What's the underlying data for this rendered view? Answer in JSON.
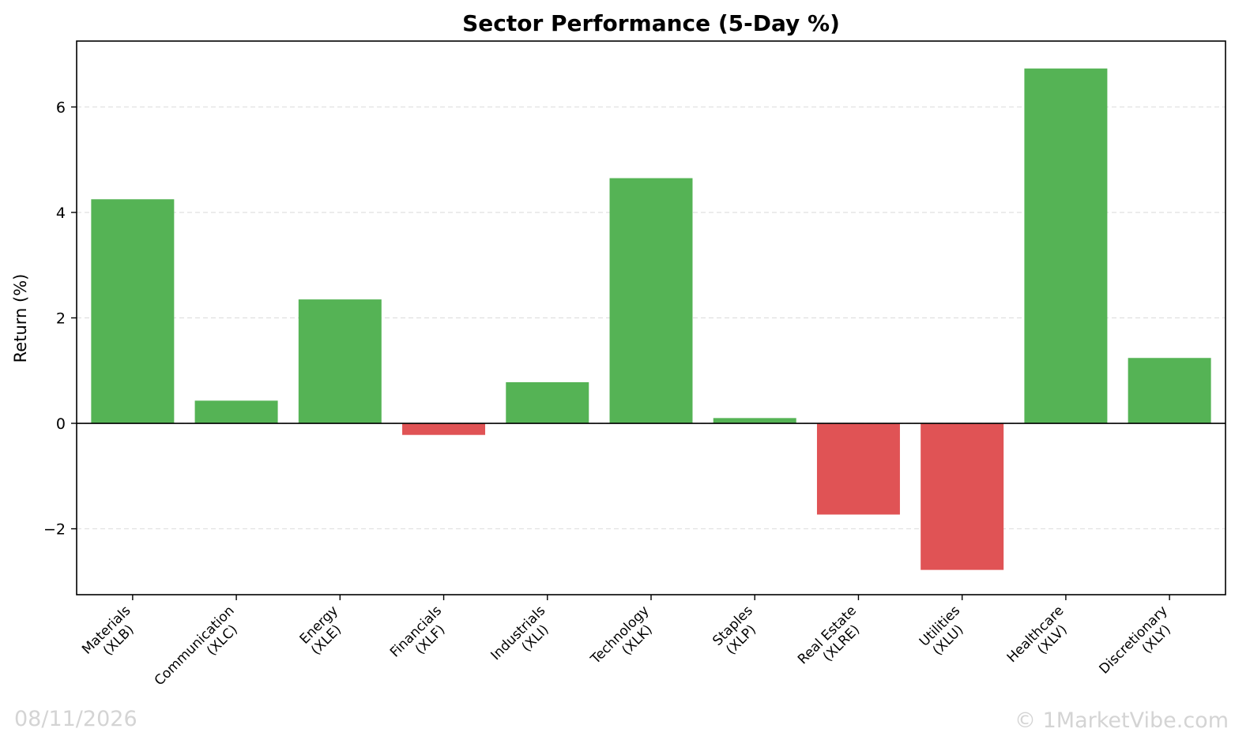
{
  "chart_data": {
    "type": "bar",
    "title": "Sector Performance (5-Day %)",
    "xlabel": "",
    "ylabel": "Return (%)",
    "ylim": [
      -3.25,
      7.25
    ],
    "yticks": [
      -2,
      0,
      2,
      4,
      6
    ],
    "ytick_labels": [
      "−2",
      "0",
      "2",
      "4",
      "6"
    ],
    "grid": "horizontal dashed",
    "categories": [
      [
        "Materials",
        "(XLB)"
      ],
      [
        "Communication",
        "(XLC)"
      ],
      [
        "Energy",
        "(XLE)"
      ],
      [
        "Financials",
        "(XLF)"
      ],
      [
        "Industrials",
        "(XLI)"
      ],
      [
        "Technology",
        "(XLK)"
      ],
      [
        "Staples",
        "(XLP)"
      ],
      [
        "Real Estate",
        "(XLRE)"
      ],
      [
        "Utilities",
        "(XLU)"
      ],
      [
        "Healthcare",
        "(XLV)"
      ],
      [
        "Discretionary",
        "(XLY)"
      ]
    ],
    "values": [
      4.25,
      0.43,
      2.35,
      -0.22,
      0.78,
      4.65,
      0.1,
      -1.73,
      -2.78,
      6.73,
      1.24
    ],
    "colors": {
      "positive": "#55b355",
      "negative": "#e05355"
    }
  },
  "footer": {
    "date": "08/11/2026",
    "copyright": "© 1MarketVibe.com"
  }
}
